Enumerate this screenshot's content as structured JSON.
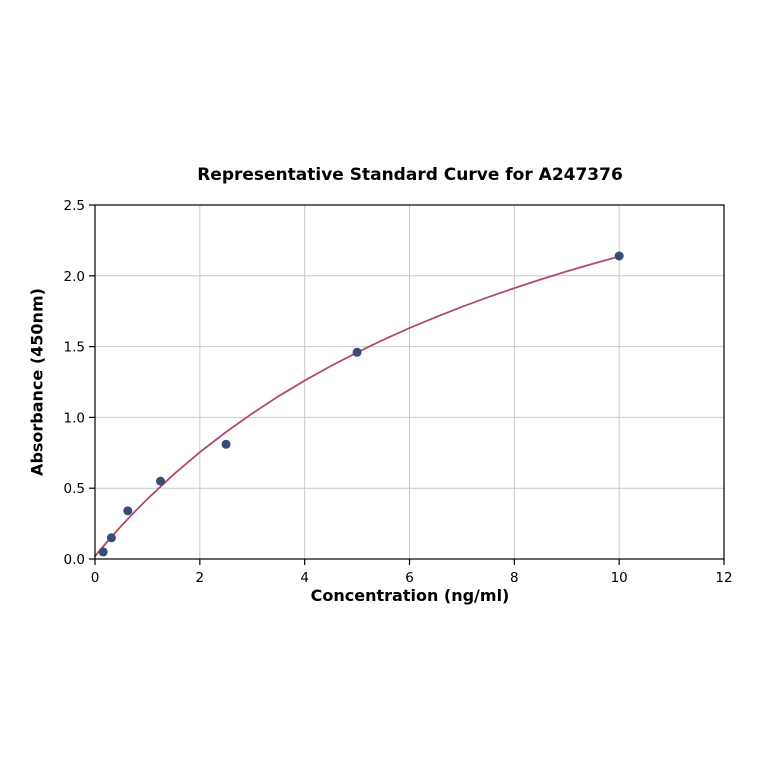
{
  "chart_data": {
    "type": "scatter",
    "title": "Representative Standard Curve for A247376",
    "xlabel": "Concentration (ng/ml)",
    "ylabel": "Absorbance (450nm)",
    "xlim": [
      0,
      12
    ],
    "ylim": [
      0,
      2.5
    ],
    "xticks": [
      0,
      2,
      4,
      6,
      8,
      10,
      12
    ],
    "xtick_labels": [
      "0",
      "2",
      "4",
      "6",
      "8",
      "10",
      "12"
    ],
    "yticks": [
      0,
      0.5,
      1.0,
      1.5,
      2.0,
      2.5
    ],
    "ytick_labels": [
      "0.0",
      "0.5",
      "1.0",
      "1.5",
      "2.0",
      "2.5"
    ],
    "grid": true,
    "legend": "none",
    "points": {
      "x": [
        0.156,
        0.313,
        0.625,
        1.25,
        2.5,
        5,
        10
      ],
      "y": [
        0.05,
        0.15,
        0.34,
        0.55,
        0.81,
        1.46,
        2.14
      ]
    },
    "fit_curve": {
      "x": [
        0,
        0.125,
        0.25,
        0.5,
        0.75,
        1,
        1.5,
        2,
        2.5,
        3,
        3.5,
        4,
        4.5,
        5,
        5.5,
        6,
        6.5,
        7,
        7.5,
        8,
        8.5,
        9,
        9.5,
        10
      ],
      "y": [
        0.02,
        0.075,
        0.129,
        0.233,
        0.331,
        0.424,
        0.597,
        0.754,
        0.897,
        1.028,
        1.149,
        1.26,
        1.363,
        1.459,
        1.548,
        1.631,
        1.708,
        1.781,
        1.849,
        1.913,
        1.974,
        2.031,
        2.085,
        2.136
      ]
    },
    "colors": {
      "curve": "#b04a6e",
      "marker": "#3a4c74",
      "grid": "#c9c9c9",
      "axis": "#000000",
      "background": "#ffffff"
    }
  }
}
